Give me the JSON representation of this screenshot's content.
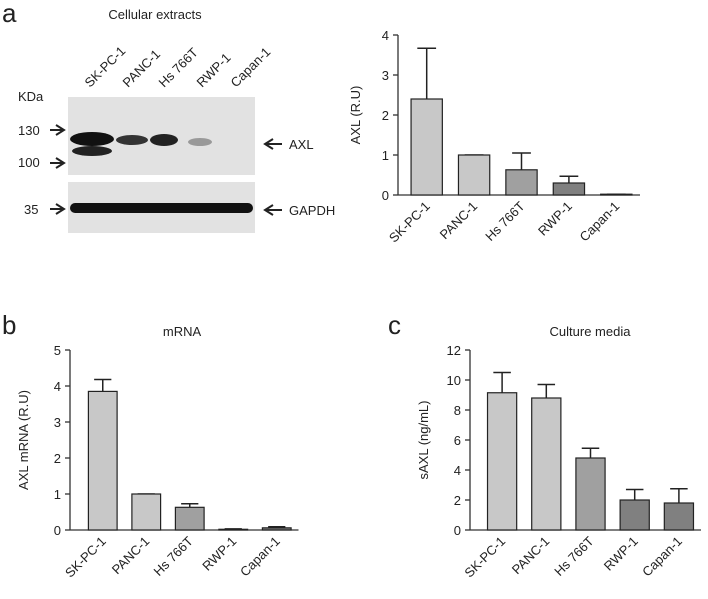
{
  "panel_labels": [
    "a",
    "b",
    "c"
  ],
  "blot": {
    "title": "Cellular extracts",
    "lanes": [
      "SK-PC-1",
      "PANC-1",
      "Hs 766T",
      "RWP-1",
      "Capan-1"
    ],
    "unit": "KDa",
    "markers": [
      "130",
      "100",
      "35"
    ],
    "bands": [
      "AXL",
      "GAPDH"
    ]
  },
  "chart_data": [
    {
      "type": "bar",
      "y_label": "AXL (R.U)",
      "categories": [
        "SK-PC-1",
        "PANC-1",
        "Hs 766T",
        "RWP-1",
        "Capan-1"
      ],
      "values": [
        2.4,
        1.0,
        0.63,
        0.3,
        0.02
      ],
      "errors": [
        1.27,
        0,
        0.42,
        0.17,
        0
      ],
      "colors": [
        "#c8c8c8",
        "#c8c8c8",
        "#a0a0a0",
        "#808080",
        "#808080"
      ],
      "ylim": [
        0,
        4
      ],
      "yticks": [
        0,
        1,
        2,
        3,
        4
      ]
    },
    {
      "type": "bar",
      "title": "mRNA",
      "y_label": "AXL mRNA (R.U)",
      "categories": [
        "SK-PC-1",
        "PANC-1",
        "Hs 766T",
        "RWP-1",
        "Capan-1"
      ],
      "values": [
        3.85,
        1.0,
        0.63,
        0.02,
        0.06
      ],
      "errors": [
        0.33,
        0,
        0.1,
        0.01,
        0.03
      ],
      "colors": [
        "#c8c8c8",
        "#c8c8c8",
        "#a0a0a0",
        "#808080",
        "#808080"
      ],
      "ylim": [
        0,
        5
      ],
      "yticks": [
        0,
        1,
        2,
        3,
        4,
        5
      ]
    },
    {
      "type": "bar",
      "title": "Culture media",
      "y_label": "sAXL (ng/mL)",
      "categories": [
        "SK-PC-1",
        "PANC-1",
        "Hs 766T",
        "RWP-1",
        "Capan-1"
      ],
      "values": [
        9.15,
        8.8,
        4.8,
        2.0,
        1.8
      ],
      "errors": [
        1.35,
        0.9,
        0.65,
        0.7,
        0.95
      ],
      "colors": [
        "#c8c8c8",
        "#c8c8c8",
        "#a0a0a0",
        "#808080",
        "#808080"
      ],
      "ylim": [
        0,
        12
      ],
      "yticks": [
        0,
        2,
        4,
        6,
        8,
        10,
        12
      ]
    }
  ]
}
